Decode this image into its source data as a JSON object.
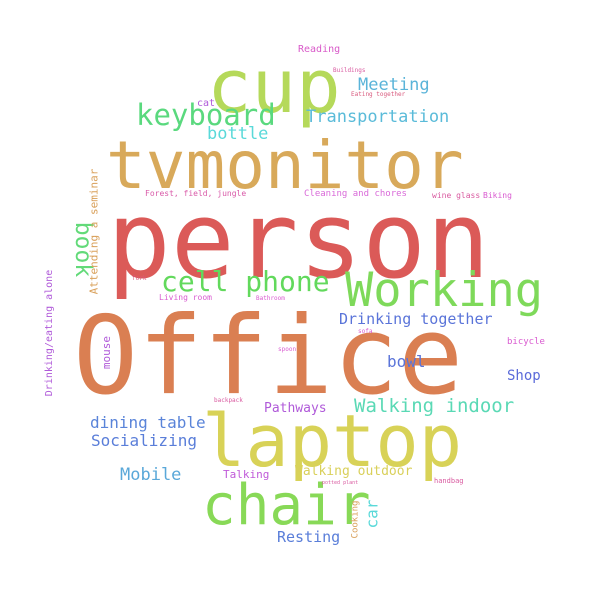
{
  "words": [
    {
      "text": "Office",
      "color": "#da7f52"
    },
    {
      "text": "person",
      "color": "#db5a58"
    },
    {
      "text": "tvmonitor",
      "color": "#d8a95a"
    },
    {
      "text": "laptop",
      "color": "#d8d257"
    },
    {
      "text": "cup",
      "color": "#b5d95a"
    },
    {
      "text": "chair",
      "color": "#88d957"
    },
    {
      "text": "Working",
      "color": "#7ed95a"
    },
    {
      "text": "cell phone",
      "color": "#62d95c"
    },
    {
      "text": "keyboard",
      "color": "#5ad97e"
    },
    {
      "text": "book",
      "color": "#62da79"
    },
    {
      "text": "Walking indoor",
      "color": "#5ad9b5"
    },
    {
      "text": "Transportation",
      "color": "#5abbd9"
    },
    {
      "text": "Meeting",
      "color": "#5ab4d9"
    },
    {
      "text": "bottle",
      "color": "#5ad9d9"
    },
    {
      "text": "Drinking together",
      "color": "#5a74d9"
    },
    {
      "text": "bowl",
      "color": "#5a74d9"
    },
    {
      "text": "Shop",
      "color": "#5a6ad9"
    },
    {
      "text": "dining table",
      "color": "#5a84d9"
    },
    {
      "text": "Socializing",
      "color": "#5a7ed9"
    },
    {
      "text": "Mobile",
      "color": "#5aa8d9"
    },
    {
      "text": "Resting",
      "color": "#5a7ed9"
    },
    {
      "text": "car",
      "color": "#5ad9d9"
    },
    {
      "text": "Walking outdoor",
      "color": "#d9d05a"
    },
    {
      "text": "Pathways",
      "color": "#b05ad9"
    },
    {
      "text": "Talking",
      "color": "#c05ad9"
    },
    {
      "text": "mouse",
      "color": "#b05ad9"
    },
    {
      "text": "Attending a seminar",
      "color": "#d9a05a"
    },
    {
      "text": "Drinking/eating alone",
      "color": "#b05ad9"
    },
    {
      "text": "Cleaning and chores",
      "color": "#d96ad9"
    },
    {
      "text": "Forest, field, jungle",
      "color": "#d95aa8"
    },
    {
      "text": "Reading",
      "color": "#d95ac9"
    },
    {
      "text": "cat",
      "color": "#b05ad9"
    },
    {
      "text": "wine glass",
      "color": "#d95aa0"
    },
    {
      "text": "Biking",
      "color": "#d95ad0"
    },
    {
      "text": "bicycle",
      "color": "#d95ad0"
    },
    {
      "text": "Cooking",
      "color": "#d9a05a"
    },
    {
      "text": "Buildings",
      "color": "#d95aa0"
    },
    {
      "text": "Eating together",
      "color": "#d95a7e"
    },
    {
      "text": "fork",
      "color": "#d95a7e"
    },
    {
      "text": "Living room",
      "color": "#d95ad0"
    },
    {
      "text": "Bathroom",
      "color": "#d95ad0"
    },
    {
      "text": "sofa",
      "color": "#d95ad0"
    },
    {
      "text": "spoon",
      "color": "#d95ad0"
    },
    {
      "text": "backpack",
      "color": "#d95aa0"
    },
    {
      "text": "handbag",
      "color": "#d95aa0"
    },
    {
      "text": "potted plant",
      "color": "#d95aa0"
    }
  ]
}
